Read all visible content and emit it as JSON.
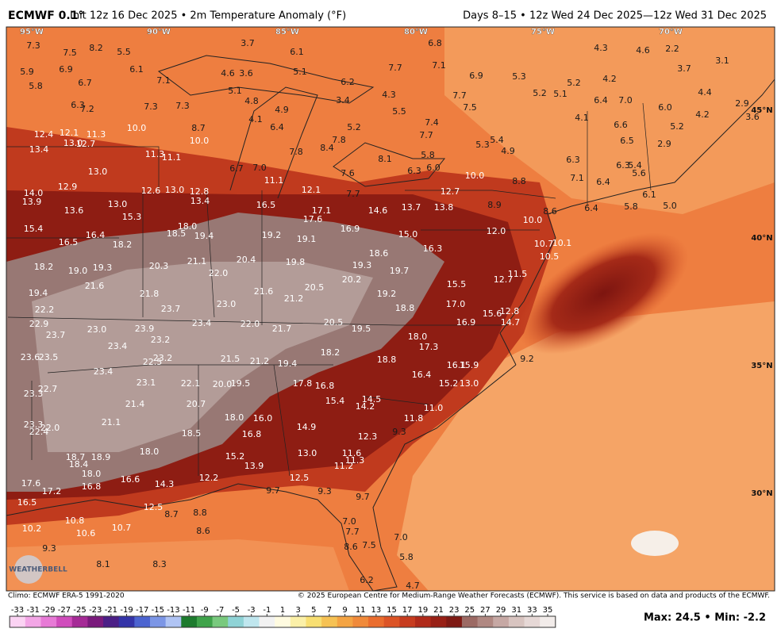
{
  "header": {
    "model": "ECMWF 0.1°",
    "title": "Init 12z 16 Dec 2025 • 2m Temperature Anomaly (°F)",
    "valid": "Days 8–15 • 12z Wed 24 Dec 2025—12z Wed 31 Dec 2025"
  },
  "map": {
    "longitudes": [
      "95°W",
      "90°W",
      "85°W",
      "80°W",
      "75°W",
      "70°W"
    ],
    "latitudes": [
      "45°N",
      "40°N",
      "35°N",
      "30°N"
    ],
    "logo": "WEATHERBELL",
    "labels": [
      "7.3",
      "7.5",
      "8.2",
      "5.5",
      "3.7",
      "6.1",
      "6.8",
      "4.3",
      "4.6",
      "2.2",
      "3.1",
      "5.9",
      "6.9",
      "6.1",
      "4.6",
      "3.6",
      "5.1",
      "6.2",
      "7.7",
      "7.1",
      "6.9",
      "5.3",
      "5.2",
      "4.2",
      "3.7",
      "5.8",
      "6.7",
      "7.1",
      "5.1",
      "4.8",
      "4.9",
      "3.4",
      "4.3",
      "7.7",
      "5.2",
      "5.1",
      "6.4",
      "7.0",
      "4.4",
      "2.9",
      "6.3",
      "7.2",
      "7.3",
      "7.3",
      "4.1",
      "5.5",
      "7.5",
      "7.4",
      "4.1",
      "6.0",
      "4.2",
      "3.6",
      "12.4",
      "12.1",
      "11.3",
      "10.0",
      "8.7",
      "6.4",
      "5.2",
      "7.7",
      "5.3",
      "5.4",
      "4.9",
      "6.6",
      "5.2",
      "13.0",
      "12.7",
      "10.0",
      "7.8",
      "8.4",
      "6.5",
      "2.9",
      "13.4",
      "11.3",
      "11.1",
      "7.8",
      "8.1",
      "5.8",
      "6.3",
      "13.0",
      "6.7",
      "7.0",
      "6.3",
      "6.0",
      "10.0",
      "8.8",
      "6.3",
      "5.4",
      "5.6",
      "7.6",
      "11.1",
      "7.1",
      "6.4",
      "12.9",
      "14.0",
      "13.9",
      "12.6",
      "13.0",
      "12.8",
      "13.4",
      "12.1",
      "7.7",
      "12.7",
      "6.1",
      "13.0",
      "13.6",
      "16.5",
      "17.1",
      "14.6",
      "13.7",
      "13.8",
      "8.9",
      "8.6",
      "6.4",
      "5.8",
      "5.0",
      "15.3",
      "17.6",
      "10.0",
      "15.4",
      "18.0",
      "16.9",
      "12.0",
      "16.4",
      "18.5",
      "19.4",
      "19.2",
      "19.1",
      "15.0",
      "16.5",
      "18.2",
      "10.7",
      "10.1",
      "16.3",
      "18.6",
      "10.5",
      "20.4",
      "21.1",
      "18.2",
      "19.0",
      "19.3",
      "20.3",
      "19.8",
      "19.3",
      "22.0",
      "19.7",
      "11.5",
      "12.7",
      "20.2",
      "21.6",
      "20.5",
      "15.5",
      "19.4",
      "21.8",
      "21.6",
      "21.2",
      "19.2",
      "23.0",
      "17.0",
      "18.8",
      "22.2",
      "23.7",
      "15.6",
      "12.8",
      "23.4",
      "22.0",
      "21.7",
      "20.5",
      "19.5",
      "16.9",
      "14.7",
      "22.9",
      "23.0",
      "23.9",
      "23.7",
      "23.2",
      "18.0",
      "23.4",
      "17.3",
      "18.2",
      "23.6",
      "23.5",
      "23.2",
      "22.5",
      "21.5",
      "21.2",
      "19.4",
      "18.8",
      "9.2",
      "16.1",
      "15.9",
      "23.4",
      "16.4",
      "23.1",
      "22.1",
      "20.0",
      "19.5",
      "17.8",
      "16.8",
      "15.2",
      "13.0",
      "22.7",
      "23.3",
      "14.5",
      "21.4",
      "20.7",
      "15.4",
      "14.2",
      "18.0",
      "16.0",
      "11.0",
      "11.8",
      "21.1",
      "23.3",
      "22.0",
      "22.4",
      "14.9",
      "9.3",
      "18.5",
      "16.8",
      "12.3",
      "18.0",
      "18.7",
      "18.9",
      "18.4",
      "13.0",
      "11.6",
      "11.3",
      "11.2",
      "15.2",
      "13.9",
      "18.0",
      "16.6",
      "14.3",
      "12.2",
      "12.5",
      "17.6",
      "17.2",
      "16.8",
      "9.7",
      "9.3",
      "9.7",
      "16.5",
      "12.5",
      "8.8",
      "8.7",
      "10.8",
      "10.2",
      "10.6",
      "10.7",
      "8.6",
      "7.0",
      "7.7",
      "7.0",
      "7.5",
      "8.6",
      "9.3",
      "5.8",
      "8.1",
      "8.3",
      "6.2",
      "4.7"
    ]
  },
  "footer": {
    "climo": "Climo: ECMWF ERA-5 1991-2020",
    "copyright": "© 2025 European Centre for Medium-Range Weather Forecasts (ECMWF). This service is based on data and products of the ECMWF."
  },
  "colorbar": {
    "ticks": [
      -33,
      -31,
      -29,
      -27,
      -25,
      -23,
      -21,
      -19,
      -17,
      -15,
      -13,
      -11,
      -9,
      -7,
      -5,
      -3,
      -1,
      1,
      3,
      5,
      7,
      9,
      11,
      13,
      15,
      17,
      19,
      21,
      23,
      25,
      27,
      29,
      31,
      33,
      35
    ],
    "colors": [
      "#fbd3f3",
      "#f3a6e6",
      "#e77ad6",
      "#d04cbc",
      "#a52a96",
      "#7a1a7c",
      "#4b1f86",
      "#3434a8",
      "#4c64d0",
      "#7c96e6",
      "#b0c4f4",
      "#1d7b2e",
      "#3fa34a",
      "#79c97e",
      "#8fd3d6",
      "#bfe6ee",
      "#f2f2f2",
      "#fffbe0",
      "#fbf0a8",
      "#f8df72",
      "#f6c254",
      "#f4a443",
      "#f08a3a",
      "#ea6d2e",
      "#dc5426",
      "#c73c1f",
      "#b02a1a",
      "#982016",
      "#7e1a14",
      "#9c6a64",
      "#b08882",
      "#c6a8a4",
      "#d8c4c0",
      "#e6d8d6",
      "#f2ecea"
    ]
  },
  "stats": "Max: 24.5 • Min: -2.2"
}
